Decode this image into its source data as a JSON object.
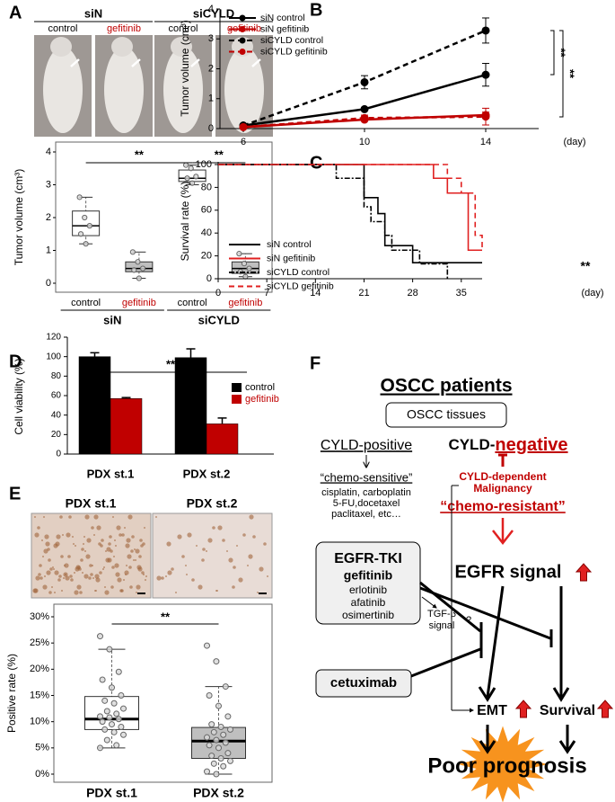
{
  "panel_labels": [
    "A",
    "B",
    "C",
    "D",
    "E",
    "F"
  ],
  "photos_A": {
    "groups": [
      "siN",
      "siCYLD"
    ],
    "labels": [
      "control",
      "gefitinib",
      "control",
      "gefitinib"
    ]
  },
  "photos_E": {
    "titles": [
      "PDX st.1",
      "PDX st.2"
    ]
  },
  "chart_data": [
    {
      "type": "box",
      "ylabel": "Tumor volume (cm³)",
      "categories": [
        "control",
        "gefitinib",
        "control",
        "gefitinib"
      ],
      "category_colors": [
        "#000000",
        "#c00000",
        "#000000",
        "#c00000"
      ],
      "groups": [
        "siN",
        "siCYLD"
      ],
      "ylim": [
        0,
        4
      ],
      "yticks": [
        0,
        1,
        2,
        3,
        4
      ],
      "boxes": [
        {
          "min": 1.2,
          "q1": 1.45,
          "median": 1.75,
          "q3": 2.2,
          "max": 2.62,
          "fill": "#ffffff",
          "points": [
            2.62,
            2.0,
            1.75,
            1.5,
            1.2
          ]
        },
        {
          "min": 0.15,
          "q1": 0.35,
          "median": 0.45,
          "q3": 0.65,
          "max": 0.95,
          "fill": "#bfbfbf",
          "points": [
            0.95,
            0.65,
            0.45,
            0.4,
            0.15
          ]
        },
        {
          "min": 3.0,
          "q1": 3.1,
          "median": 3.2,
          "q3": 3.45,
          "max": 3.6,
          "fill": "#ffffff",
          "points": [
            3.6,
            3.5,
            3.25,
            3.2,
            3.05
          ]
        },
        {
          "min": 0.2,
          "q1": 0.3,
          "median": 0.45,
          "q3": 0.65,
          "max": 0.9,
          "fill": "#bfbfbf",
          "points": [
            0.9,
            0.6,
            0.45,
            0.35,
            0.2
          ]
        }
      ],
      "annotations": [
        "**",
        "**"
      ]
    },
    {
      "type": "line",
      "ylabel": "Tumor volume (cm³)",
      "xlabel": "(day)",
      "categories": [
        "6",
        "10",
        "14"
      ],
      "ylim": [
        0,
        4
      ],
      "yticks": [
        0,
        1,
        2,
        3,
        4
      ],
      "series": [
        {
          "name": "siN control",
          "color": "#000000",
          "style": "solid",
          "values": [
            0.1,
            0.65,
            1.8
          ],
          "errors": [
            0.02,
            0.05,
            0.38
          ]
        },
        {
          "name": "siN gefitinib",
          "color": "#c00000",
          "style": "solid",
          "values": [
            0.05,
            0.3,
            0.45
          ],
          "errors": [
            0.02,
            0.05,
            0.1
          ]
        },
        {
          "name": "siCYLD control",
          "color": "#000000",
          "style": "dashed",
          "values": [
            0.1,
            1.55,
            3.28
          ],
          "errors": [
            0.02,
            0.22,
            0.42
          ]
        },
        {
          "name": "siCYLD gefitinib",
          "color": "#c00000",
          "style": "dashed",
          "values": [
            0.05,
            0.35,
            0.4
          ],
          "errors": [
            0.02,
            0.1,
            0.28
          ]
        }
      ],
      "annotations": [
        "**",
        "**"
      ]
    },
    {
      "type": "step",
      "ylabel": "Survival rate (%)",
      "xlabel": "(day)",
      "xlim": [
        0,
        38
      ],
      "xticks": [
        0,
        7,
        14,
        21,
        28,
        35
      ],
      "ylim": [
        0,
        100
      ],
      "yticks": [
        0,
        20,
        40,
        60,
        80,
        100
      ],
      "series": [
        {
          "name": "siN control",
          "color": "#000000",
          "style": "solid",
          "x": [
            0,
            21,
            23,
            24,
            28,
            38
          ],
          "values": [
            100,
            71,
            57,
            29,
            14,
            14
          ]
        },
        {
          "name": "siN gefitinib",
          "color": "#e02020",
          "style": "solid",
          "x": [
            0,
            31,
            33,
            36,
            38
          ],
          "values": [
            100,
            88,
            75,
            25,
            25
          ]
        },
        {
          "name": "siCYLD control",
          "color": "#000000",
          "style": "dashdot",
          "x": [
            0,
            17,
            18,
            21,
            22,
            24,
            25,
            29,
            32,
            33
          ],
          "values": [
            100,
            88,
            88,
            63,
            50,
            38,
            25,
            13,
            13,
            0
          ]
        },
        {
          "name": "siCYLD gefitinib",
          "color": "#e02020",
          "style": "dashed",
          "x": [
            0,
            33,
            35,
            37,
            38
          ],
          "values": [
            100,
            88,
            75,
            38,
            25
          ]
        }
      ],
      "annotations": [
        "**"
      ]
    },
    {
      "type": "bar",
      "ylabel": "Cell viability (%)",
      "categories": [
        "PDX st.1",
        "PDX st.2"
      ],
      "ylim": [
        0,
        120
      ],
      "yticks": [
        0,
        20,
        40,
        60,
        80,
        100,
        120
      ],
      "series": [
        {
          "name": "control",
          "color": "#000000",
          "values": [
            100,
            99
          ],
          "errors": [
            4,
            9
          ]
        },
        {
          "name": "gefitinib",
          "color": "#c00000",
          "values": [
            57,
            31
          ],
          "errors": [
            1,
            6
          ]
        }
      ],
      "annotations": [
        "**"
      ]
    },
    {
      "type": "box",
      "ylabel": "Positive rate (%)",
      "categories": [
        "PDX st.1",
        "PDX st.2"
      ],
      "ylim": [
        0,
        30
      ],
      "yticks": [
        {
          "value": 0,
          "label": "0%"
        },
        {
          "value": 5,
          "label": "5%"
        },
        {
          "value": 10,
          "label": "10%"
        },
        {
          "value": 15,
          "label": "15%"
        },
        {
          "value": 20,
          "label": "20%"
        },
        {
          "value": 25,
          "label": "25%"
        },
        {
          "value": 30,
          "label": "30%"
        }
      ],
      "boxes": [
        {
          "min": 5,
          "q1": 8.5,
          "median": 10.5,
          "q3": 14.8,
          "max": 23.8,
          "fill": "#ffffff",
          "points": [
            26.3,
            23.8,
            19.5,
            18,
            16.5,
            15,
            14,
            13.5,
            12.5,
            12,
            11.5,
            11,
            10.8,
            10.5,
            10,
            9.5,
            9,
            8.5,
            8,
            7.5,
            6.5,
            5.5,
            5
          ]
        },
        {
          "min": 0,
          "q1": 3,
          "median": 6.3,
          "q3": 8.9,
          "max": 16.7,
          "fill": "#bfbfbf",
          "points": [
            24.5,
            21.5,
            16.7,
            15,
            13,
            11,
            9.5,
            9,
            8.5,
            8,
            7.5,
            7,
            6.5,
            6,
            5.5,
            5,
            4,
            3.5,
            3,
            2.5,
            2,
            1.5,
            0.5,
            0
          ]
        }
      ],
      "annotations": [
        "**"
      ]
    }
  ],
  "diagram": {
    "title": "OSCC patients",
    "tissues": "OSCC tissues",
    "positive": "CYLD-positive",
    "negative_prefix": "CYLD-",
    "negative_suffix": "negative",
    "sensitive": "“chemo-sensitive”",
    "drugs": [
      "cisplatin, carboplatin",
      "5-FU,docetaxel",
      "paclitaxel, etc…"
    ],
    "malignancy": [
      "CYLD-dependent",
      "Malignancy"
    ],
    "resistant": "“chemo-resistant”",
    "egfr": "EGFR signal",
    "tki_title": "EGFR-TKI",
    "tki_drugs": [
      "gefitinib",
      "erlotinib",
      "afatinib",
      "osimertinib"
    ],
    "tgf": [
      "TGF-β",
      "signal"
    ],
    "question": "?",
    "cetuximab": "cetuximab",
    "emt": "EMT",
    "survival": "Survival",
    "outcome": "Poor prognosis"
  }
}
